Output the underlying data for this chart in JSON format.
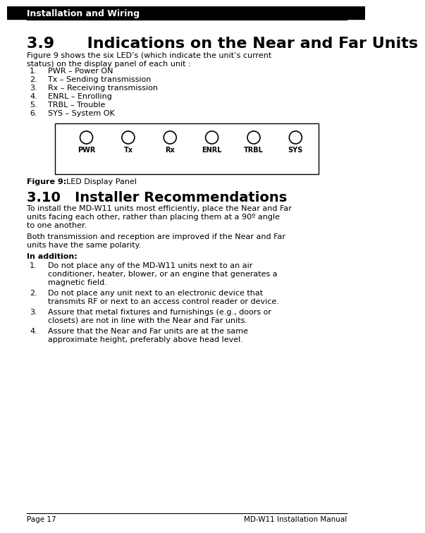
{
  "header_text": "Installation and Wiring",
  "section_title": "3.9      Indications on the Near and Far Units",
  "section_body_line1": "Figure 9 shows the six LED’s (which indicate the unit’s current",
  "section_body_line2": "status) on the display panel of each unit :",
  "list_items_39": [
    "PWR – Power ON",
    "Tx – Sending transmission",
    "Rx – Receiving transmission",
    "ENRL – Enrolling",
    "TRBL – Trouble",
    "SYS – System OK"
  ],
  "led_labels": [
    "PWR",
    "Tx",
    "Rx",
    "ENRL",
    "TRBL",
    "SYS"
  ],
  "figure_caption_bold": "Figure 9:",
  "figure_caption_rest": "    LED Display Panel",
  "section_title_310": "3.10   Installer Recommendations",
  "body_310a_lines": [
    "To install the MD-W11 units most efficiently, place the Near and Far",
    "units facing each other, rather than placing them at a 90º angle",
    "to one another."
  ],
  "body_310b_lines": [
    "Both transmission and reception are improved if the Near and Far",
    "units have the same polarity."
  ],
  "in_addition_bold": "In addition:",
  "list_items_310": [
    [
      "Do not place any of the MD-W11 units next to an air",
      "conditioner, heater, blower, or an engine that generates a",
      "magnetic field."
    ],
    [
      "Do not place any unit next to an electronic device that",
      "transmits RF or next to an access control reader or device."
    ],
    [
      "Assure that metal fixtures and furnishings (e.g., doors or",
      "closets) are not in line with the Near and Far units."
    ],
    [
      "Assure that the Near and Far units are at the same",
      "approximate height, preferably above head level."
    ]
  ],
  "footer_left": "Page 17",
  "footer_right": "MD-W11 Installation Manual",
  "bg_color": "#ffffff",
  "text_color": "#000000",
  "header_bg": "#000000",
  "header_fg": "#ffffff",
  "header_fontsize": 9,
  "title39_fontsize": 16,
  "title310_fontsize": 14,
  "body_fontsize": 8,
  "list_fontsize": 8,
  "caption_fontsize": 8,
  "footer_fontsize": 7.5,
  "led_label_fontsize": 7,
  "lmargin": 28,
  "rmargin": 482
}
